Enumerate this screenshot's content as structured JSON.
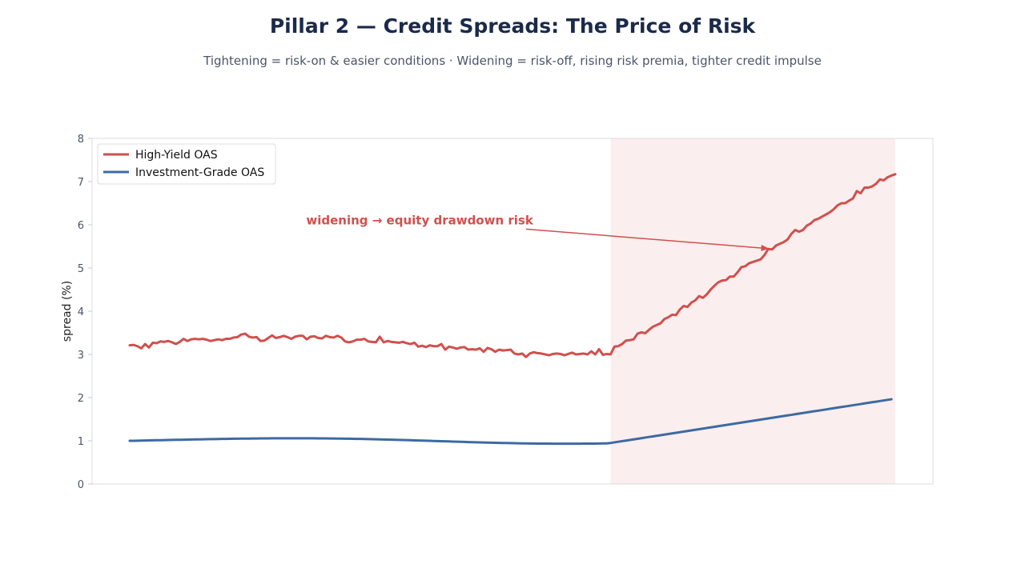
{
  "chart_data": {
    "type": "line",
    "title": "Pillar 2 — Credit Spreads: The Price of Risk",
    "subtitle": "Tightening = risk-on & easier conditions · Widening = risk-off, rising risk premia, tighter credit impulse",
    "xlabel": "",
    "ylabel": "spread (%)",
    "ylim": [
      0,
      8
    ],
    "yticks": [
      "0",
      "1",
      "2",
      "3",
      "4",
      "5",
      "6",
      "7",
      "8"
    ],
    "x_index_range": [
      0,
      199
    ],
    "grid": false,
    "legend_position": "top-left",
    "highlight_region": {
      "x_start": 125,
      "x_end": 199,
      "color": "#fbeeee"
    },
    "annotation": {
      "text": "widening → equity drawdown risk",
      "color": "#d0504d",
      "target": {
        "x": 166,
        "y": 5.45
      },
      "text_anchor_point": {
        "x": 103,
        "y": 5.9
      }
    },
    "series": [
      {
        "name": "High-Yield OAS",
        "color": "#d0504d",
        "values": [
          3.21,
          3.22,
          3.19,
          3.14,
          3.24,
          3.16,
          3.27,
          3.26,
          3.3,
          3.29,
          3.31,
          3.28,
          3.24,
          3.29,
          3.36,
          3.31,
          3.35,
          3.36,
          3.35,
          3.36,
          3.34,
          3.31,
          3.33,
          3.35,
          3.33,
          3.36,
          3.36,
          3.39,
          3.4,
          3.46,
          3.48,
          3.41,
          3.39,
          3.4,
          3.31,
          3.32,
          3.38,
          3.44,
          3.38,
          3.4,
          3.43,
          3.4,
          3.36,
          3.41,
          3.43,
          3.43,
          3.35,
          3.41,
          3.42,
          3.38,
          3.37,
          3.43,
          3.4,
          3.39,
          3.43,
          3.39,
          3.3,
          3.28,
          3.3,
          3.34,
          3.34,
          3.36,
          3.3,
          3.29,
          3.28,
          3.41,
          3.28,
          3.31,
          3.29,
          3.28,
          3.27,
          3.29,
          3.26,
          3.24,
          3.27,
          3.18,
          3.2,
          3.17,
          3.21,
          3.19,
          3.19,
          3.24,
          3.11,
          3.18,
          3.16,
          3.13,
          3.16,
          3.17,
          3.11,
          3.12,
          3.11,
          3.14,
          3.06,
          3.15,
          3.12,
          3.06,
          3.11,
          3.09,
          3.1,
          3.11,
          3.02,
          3.0,
          3.02,
          2.94,
          3.02,
          3.05,
          3.03,
          3.02,
          3.0,
          2.98,
          3.01,
          3.02,
          3.01,
          2.98,
          3.01,
          3.04,
          3.0,
          3.01,
          3.02,
          3.0,
          3.07,
          3.0,
          3.12,
          2.99,
          3.01,
          3.0,
          3.18,
          3.19,
          3.24,
          3.32,
          3.33,
          3.35,
          3.48,
          3.51,
          3.49,
          3.57,
          3.64,
          3.68,
          3.72,
          3.82,
          3.86,
          3.92,
          3.91,
          4.04,
          4.12,
          4.1,
          4.2,
          4.25,
          4.35,
          4.31,
          4.39,
          4.5,
          4.59,
          4.67,
          4.71,
          4.72,
          4.8,
          4.8,
          4.9,
          5.02,
          5.04,
          5.11,
          5.14,
          5.17,
          5.2,
          5.3,
          5.44,
          5.43,
          5.52,
          5.56,
          5.6,
          5.66,
          5.79,
          5.88,
          5.84,
          5.88,
          5.98,
          6.03,
          6.11,
          6.14,
          6.19,
          6.24,
          6.29,
          6.36,
          6.45,
          6.5,
          6.5,
          6.56,
          6.61,
          6.78,
          6.73,
          6.86,
          6.86,
          6.89,
          6.95,
          7.05,
          7.03,
          7.1,
          7.14,
          7.17
        ]
      },
      {
        "name": "Investment-Grade OAS",
        "color": "#3d6aa3",
        "values": [
          1.0,
          1.001,
          1.003,
          1.005,
          1.007,
          1.009,
          1.011,
          1.013,
          1.015,
          1.017,
          1.019,
          1.021,
          1.022,
          1.024,
          1.026,
          1.028,
          1.03,
          1.032,
          1.033,
          1.035,
          1.037,
          1.039,
          1.04,
          1.042,
          1.043,
          1.045,
          1.046,
          1.048,
          1.049,
          1.05,
          1.051,
          1.052,
          1.053,
          1.054,
          1.055,
          1.056,
          1.056,
          1.057,
          1.057,
          1.058,
          1.058,
          1.058,
          1.058,
          1.058,
          1.058,
          1.058,
          1.058,
          1.057,
          1.057,
          1.056,
          1.056,
          1.055,
          1.054,
          1.053,
          1.052,
          1.051,
          1.049,
          1.048,
          1.046,
          1.045,
          1.043,
          1.041,
          1.039,
          1.037,
          1.035,
          1.033,
          1.031,
          1.028,
          1.026,
          1.024,
          1.021,
          1.019,
          1.016,
          1.013,
          1.01,
          1.008,
          1.005,
          1.002,
          0.999,
          0.996,
          0.993,
          0.991,
          0.988,
          0.985,
          0.982,
          0.979,
          0.976,
          0.974,
          0.971,
          0.968,
          0.966,
          0.963,
          0.961,
          0.958,
          0.956,
          0.954,
          0.952,
          0.95,
          0.948,
          0.946,
          0.944,
          0.942,
          0.941,
          0.94,
          0.938,
          0.937,
          0.936,
          0.935,
          0.934,
          0.934,
          0.933,
          0.933,
          0.932,
          0.932,
          0.932,
          0.932,
          0.932,
          0.933,
          0.934,
          0.934,
          0.935,
          0.936,
          0.937,
          0.939,
          0.94,
          0.95,
          0.964,
          0.978,
          0.992,
          1.005,
          1.019,
          1.033,
          1.047,
          1.061,
          1.075,
          1.089,
          1.102,
          1.116,
          1.13,
          1.144,
          1.158,
          1.172,
          1.186,
          1.199,
          1.213,
          1.227,
          1.241,
          1.255,
          1.269,
          1.283,
          1.296,
          1.31,
          1.324,
          1.338,
          1.352,
          1.366,
          1.38,
          1.394,
          1.407,
          1.421,
          1.435,
          1.449,
          1.463,
          1.477,
          1.491,
          1.504,
          1.518,
          1.532,
          1.546,
          1.56,
          1.574,
          1.588,
          1.601,
          1.615,
          1.629,
          1.643,
          1.657,
          1.671,
          1.685,
          1.698,
          1.712,
          1.726,
          1.74,
          1.754,
          1.768,
          1.782,
          1.795,
          1.809,
          1.823,
          1.837,
          1.851,
          1.865,
          1.879,
          1.893,
          1.906,
          1.92,
          1.934,
          1.948,
          1.962
        ]
      }
    ]
  }
}
